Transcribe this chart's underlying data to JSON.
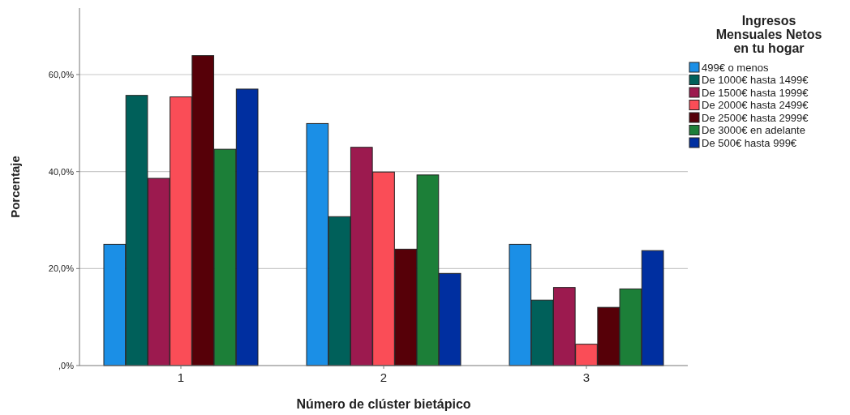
{
  "chart_data": {
    "type": "bar",
    "xlabel": "Número de clúster bietápico",
    "ylabel": "Porcentaje",
    "legend_title": "Ingresos Mensuales Netos en tu hogar",
    "categories": [
      "1",
      "2",
      "3"
    ],
    "series": [
      {
        "name": "499€ o menos",
        "color": "#1b8fe6",
        "values": [
          25.0,
          49.9,
          25.0
        ]
      },
      {
        "name": "De 1000€ hasta 1499€",
        "color": "#00605a",
        "values": [
          55.7,
          30.7,
          13.5
        ]
      },
      {
        "name": "De 1500€ hasta 1999€",
        "color": "#9c1a4f",
        "values": [
          38.6,
          45.0,
          16.1
        ]
      },
      {
        "name": "De 2000€ hasta 2499€",
        "color": "#fa4d57",
        "values": [
          55.4,
          39.9,
          4.4
        ]
      },
      {
        "name": "De 2500€ hasta 2999€",
        "color": "#560008",
        "values": [
          63.9,
          24.0,
          12.0
        ]
      },
      {
        "name": "De 3000€ en adelante",
        "color": "#1c7f38",
        "values": [
          44.6,
          39.3,
          15.8
        ]
      },
      {
        "name": "De 500€ hasta 999€",
        "color": "#002fa0",
        "values": [
          57.0,
          19.0,
          23.7
        ]
      }
    ],
    "ylim": [
      0,
      73.7
    ],
    "yticks": [
      {
        "value": 0,
        "label": ",0%"
      },
      {
        "value": 20,
        "label": "20,0%"
      },
      {
        "value": 40,
        "label": "40,0%"
      },
      {
        "value": 60,
        "label": "60,0%"
      }
    ],
    "grid": "y",
    "legend": "top right"
  }
}
